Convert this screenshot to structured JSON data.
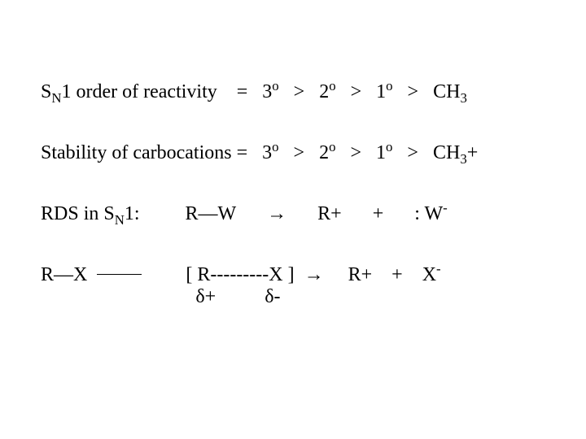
{
  "line1": {
    "label_pre": "S",
    "label_sub": "N",
    "label_post": "1 order of reactivity",
    "eq": "=",
    "t3": "3",
    "t2": "2",
    "t1": "1",
    "deg": "o",
    "gt": ">",
    "ch": "CH",
    "ch_sub": "3"
  },
  "line2": {
    "label": "Stability of carbocations",
    "eq": "=",
    "t3": "3",
    "t2": "2",
    "t1": "1",
    "deg": "o",
    "gt": ">",
    "ch": "CH",
    "ch_sub": "3",
    "plus": "+"
  },
  "line3": {
    "label_pre": "RDS in S",
    "label_sub": "N",
    "label_post": "1:",
    "rw": "R—W",
    "arrow": "→",
    "rplus": "R+",
    "plus": "+",
    "w": ": W",
    "w_sup": "-"
  },
  "line4": {
    "rx": "R—X",
    "bracket": "[ R---------X ]",
    "arrow": "→",
    "charges": "  δ+          δ-",
    "rplus": "R+",
    "plus": "+",
    "x": "X",
    "x_sup": "-"
  }
}
